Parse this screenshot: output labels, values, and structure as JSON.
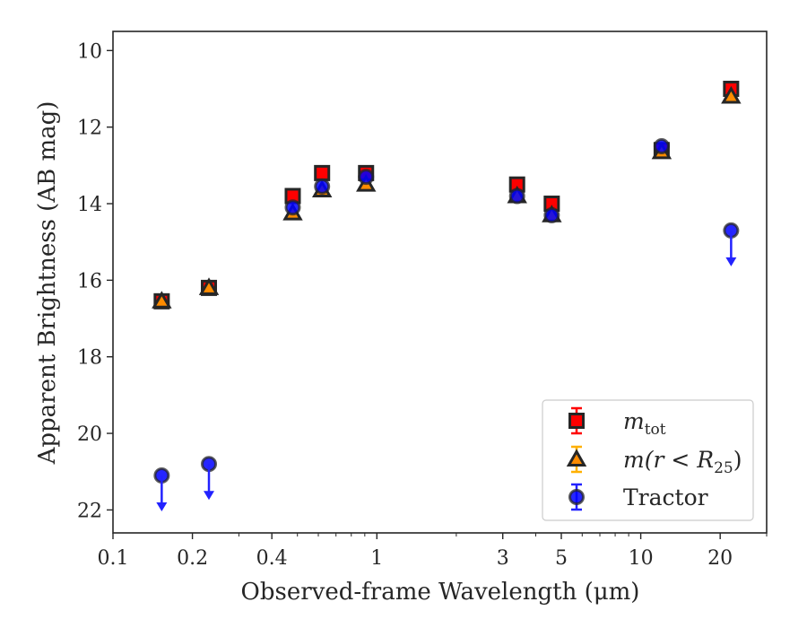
{
  "chart_data": {
    "type": "scatter",
    "xlabel": "Observed-frame Wavelength (μm)",
    "ylabel": "Apparent Brightness (AB mag)",
    "x_scale": "log",
    "xlim": [
      0.1,
      30
    ],
    "ylim": [
      22.6,
      9.5
    ],
    "y_inverted": true,
    "x_ticks": [
      {
        "value": 0.1,
        "label": "0.1"
      },
      {
        "value": 0.2,
        "label": "0.2"
      },
      {
        "value": 0.4,
        "label": "0.4"
      },
      {
        "value": 1,
        "label": "1"
      },
      {
        "value": 3,
        "label": "3"
      },
      {
        "value": 5,
        "label": "5"
      },
      {
        "value": 10,
        "label": "10"
      },
      {
        "value": 20,
        "label": "20"
      }
    ],
    "y_ticks": [
      {
        "value": 10,
        "label": "10"
      },
      {
        "value": 12,
        "label": "12"
      },
      {
        "value": 14,
        "label": "14"
      },
      {
        "value": 16,
        "label": "16"
      },
      {
        "value": 18,
        "label": "18"
      },
      {
        "value": 20,
        "label": "20"
      },
      {
        "value": 22,
        "label": "22"
      }
    ],
    "grid": false,
    "legend_position": "lower-right",
    "series": [
      {
        "key": "mtot",
        "legend_base": "m",
        "legend_sub": "tot",
        "marker": "square",
        "color": "#ff0000",
        "edge": "#262626",
        "err_color": "#ff0000",
        "points": [
          {
            "x": 0.153,
            "y": 16.55
          },
          {
            "x": 0.231,
            "y": 16.2
          },
          {
            "x": 0.48,
            "y": 13.8
          },
          {
            "x": 0.62,
            "y": 13.2
          },
          {
            "x": 0.91,
            "y": 13.2
          },
          {
            "x": 3.4,
            "y": 13.5
          },
          {
            "x": 4.6,
            "y": 14.0
          },
          {
            "x": 12.0,
            "y": 12.6
          },
          {
            "x": 22.0,
            "y": 11.0
          }
        ]
      },
      {
        "key": "mr25",
        "legend_base": "m(r < R",
        "legend_sub": "25",
        "legend_end": ")",
        "marker": "triangle",
        "color": "#ff8c00",
        "edge": "#262626",
        "err_color": "#ffb000",
        "points": [
          {
            "x": 0.153,
            "y": 16.55
          },
          {
            "x": 0.231,
            "y": 16.2
          },
          {
            "x": 0.48,
            "y": 14.25
          },
          {
            "x": 0.62,
            "y": 13.65
          },
          {
            "x": 0.91,
            "y": 13.5
          },
          {
            "x": 3.4,
            "y": 13.8
          },
          {
            "x": 4.6,
            "y": 14.3
          },
          {
            "x": 12.0,
            "y": 12.65
          },
          {
            "x": 22.0,
            "y": 11.2
          }
        ]
      },
      {
        "key": "tractor",
        "legend_label": "Tractor",
        "marker": "circle",
        "color": "#0000ff",
        "edge": "#262626",
        "err_color": "#2222ff",
        "points": [
          {
            "x": 0.153,
            "y": 21.1,
            "upper_limit": true
          },
          {
            "x": 0.231,
            "y": 20.8,
            "upper_limit": true
          },
          {
            "x": 0.48,
            "y": 14.1
          },
          {
            "x": 0.62,
            "y": 13.55
          },
          {
            "x": 0.91,
            "y": 13.3
          },
          {
            "x": 3.4,
            "y": 13.8
          },
          {
            "x": 4.6,
            "y": 14.3
          },
          {
            "x": 12.0,
            "y": 12.5
          },
          {
            "x": 22.0,
            "y": 14.7,
            "upper_limit": true
          }
        ]
      }
    ]
  }
}
